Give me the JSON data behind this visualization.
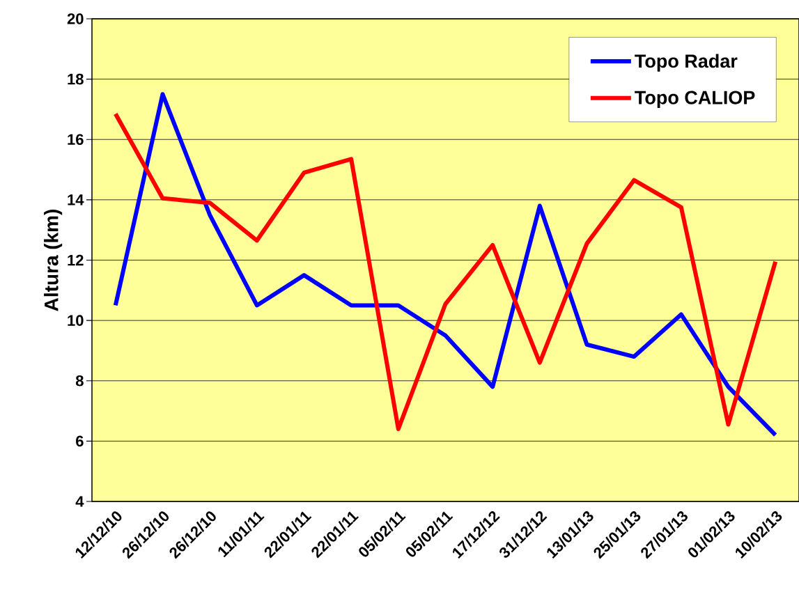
{
  "chart_data": {
    "type": "line",
    "ylabel": "Altura  (km)",
    "categories": [
      "12/12/10",
      "26/12/10",
      "26/12/10",
      "11/01/11",
      "22/01/11",
      "22/01/11",
      "05/02/11",
      "05/02/11",
      "17/12/12",
      "31/12/12",
      "13/01/13",
      "25/01/13",
      "27/01/13",
      "01/02/13",
      "10/02/13"
    ],
    "series": [
      {
        "name": "Topo Radar",
        "color": "#0000ff",
        "values": [
          10.5,
          17.5,
          13.5,
          10.5,
          11.5,
          10.5,
          10.5,
          9.5,
          7.8,
          13.8,
          9.2,
          8.8,
          10.2,
          7.8,
          6.2
        ]
      },
      {
        "name": "Topo CALIOP",
        "color": "#ff0000",
        "values": [
          16.85,
          14.05,
          13.9,
          12.65,
          14.9,
          15.35,
          6.4,
          10.55,
          12.5,
          8.6,
          12.55,
          14.65,
          13.75,
          6.55,
          11.95
        ]
      }
    ],
    "ylim": [
      4,
      20
    ],
    "yticks": [
      4,
      6,
      8,
      10,
      12,
      14,
      16,
      18,
      20
    ],
    "grid": "y",
    "legend": "top right",
    "marker": "none",
    "line_style": "solid"
  }
}
